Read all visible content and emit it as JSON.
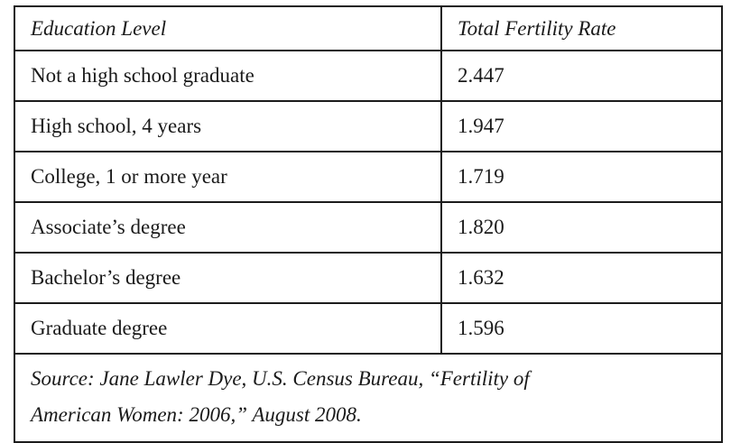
{
  "table": {
    "columns": [
      {
        "label": "Education Level"
      },
      {
        "label": "Total Fertility Rate"
      }
    ],
    "rows": [
      {
        "education": "Not a high school graduate",
        "rate": "2.447"
      },
      {
        "education": "High school, 4 years",
        "rate": "1.947"
      },
      {
        "education": "College, 1 or more year",
        "rate": "1.719"
      },
      {
        "education": "Associate’s degree",
        "rate": "1.820"
      },
      {
        "education": "Bachelor’s degree",
        "rate": "1.632"
      },
      {
        "education": "Graduate degree",
        "rate": "1.596"
      }
    ],
    "source_lines": [
      "Source: Jane Lawler Dye, U.S. Census Bureau, “Fertility of",
      "American Women: 2006,” August 2008."
    ]
  },
  "colors": {
    "border": "#1c1c1c",
    "text": "#1a1a1a",
    "background": "#ffffff"
  },
  "chart_data": {
    "type": "table",
    "columns": [
      "Education Level",
      "Total Fertility Rate"
    ],
    "categories": [
      "Not a high school graduate",
      "High school, 4 years",
      "College, 1 or more year",
      "Associate’s degree",
      "Bachelor’s degree",
      "Graduate degree"
    ],
    "values": [
      2.447,
      1.947,
      1.719,
      1.82,
      1.632,
      1.596
    ],
    "source": "Source: Jane Lawler Dye, U.S. Census Bureau, “Fertility of American Women: 2006,” August 2008."
  }
}
